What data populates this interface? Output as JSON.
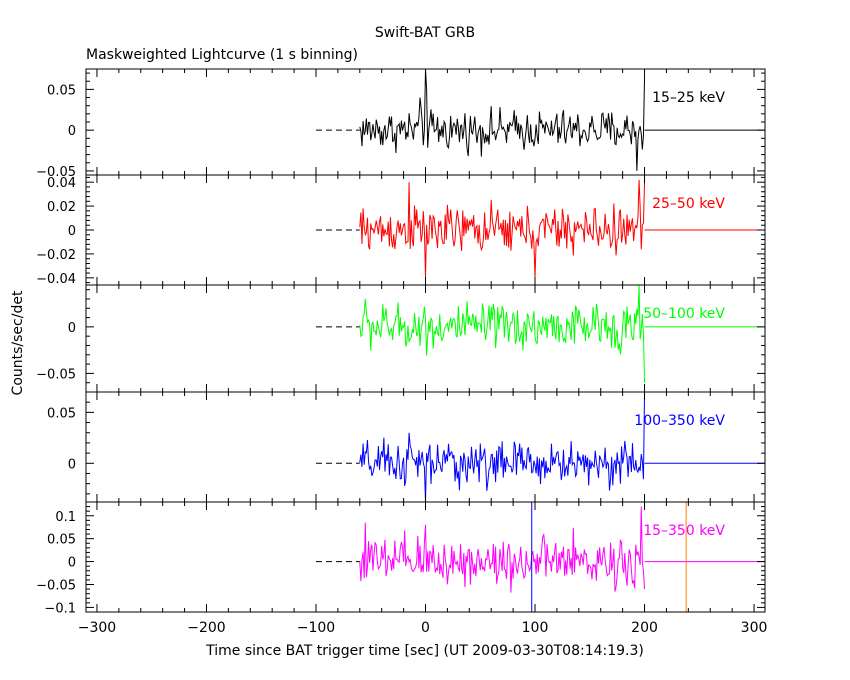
{
  "title": "Swift-BAT GRB",
  "subtitle": "Maskweighted Lightcurve (1 s binning)",
  "ylabel": "Counts/sec/det",
  "xlabel": "Time since BAT trigger time [sec] (UT 2009-03-30T08:14:19.3)",
  "colors": {
    "frame": "#000000",
    "trigger_line": "#0000ff",
    "marker_line": "#ff8000"
  },
  "chart_data": {
    "type": "line",
    "x_range": [
      -310,
      310
    ],
    "x_ticks": [
      -300,
      -200,
      -100,
      0,
      100,
      200,
      300
    ],
    "x_tick_labels": [
      "−300",
      "−200",
      "−100",
      "0",
      "100",
      "200",
      "300"
    ],
    "data_start": -60,
    "data_end": 200,
    "dashed_baseline_range": [
      -100,
      -60
    ],
    "post_data_baseline_to": 310,
    "trigger_line_x": 97,
    "orange_line_x": 238,
    "series": [
      {
        "name": "15–25 keV",
        "color": "#000000",
        "ylim": [
          -0.055,
          0.075
        ],
        "yticks": [
          -0.05,
          0,
          0.05
        ],
        "ytick_labels": [
          "−0.05",
          "0",
          "0.05"
        ],
        "noise_amplitude": 0.02,
        "spikes": [
          [
            0,
            0.075
          ],
          [
            1,
            0.05
          ],
          [
            193,
            -0.05
          ],
          [
            200,
            0.065
          ],
          [
            -5,
            0.04
          ]
        ]
      },
      {
        "name": "25–50 keV",
        "color": "#ff0000",
        "ylim": [
          -0.046,
          0.046
        ],
        "yticks": [
          -0.04,
          -0.02,
          0,
          0.02,
          0.04
        ],
        "ytick_labels": [
          "−0.04",
          "−0.02",
          "0",
          "0.02",
          "0.04"
        ],
        "noise_amplitude": 0.016,
        "spikes": [
          [
            -15,
            0.04
          ],
          [
            0,
            -0.04
          ],
          [
            100,
            -0.04
          ],
          [
            195,
            0.042
          ],
          [
            200,
            0.04
          ]
        ]
      },
      {
        "name": "50–100 keV",
        "color": "#00ff00",
        "ylim": [
          -0.07,
          0.045
        ],
        "yticks": [
          -0.05,
          0
        ],
        "ytick_labels": [
          "−0.05",
          "0"
        ],
        "noise_amplitude": 0.02,
        "spikes": [
          [
            -55,
            0.03
          ],
          [
            195,
            0.045
          ],
          [
            200,
            -0.06
          ]
        ]
      },
      {
        "name": "100–350 keV",
        "color": "#0000ff",
        "ylim": [
          -0.038,
          0.07
        ],
        "yticks": [
          0,
          0.05
        ],
        "ytick_labels": [
          "0",
          "0.05"
        ],
        "noise_amplitude": 0.018,
        "spikes": [
          [
            0,
            -0.038
          ],
          [
            200,
            0.07
          ],
          [
            -15,
            0.03
          ]
        ]
      },
      {
        "name": "15–350 keV",
        "color": "#ff00ff",
        "ylim": [
          -0.11,
          0.13
        ],
        "yticks": [
          -0.1,
          -0.05,
          0,
          0.05,
          0.1
        ],
        "ytick_labels": [
          "−0.1",
          "−0.05",
          "0",
          "0.05",
          "0.1"
        ],
        "noise_amplitude": 0.045,
        "spikes": [
          [
            -55,
            0.085
          ],
          [
            0,
            0.08
          ],
          [
            197,
            0.12
          ],
          [
            200,
            -0.06
          ]
        ]
      }
    ]
  }
}
